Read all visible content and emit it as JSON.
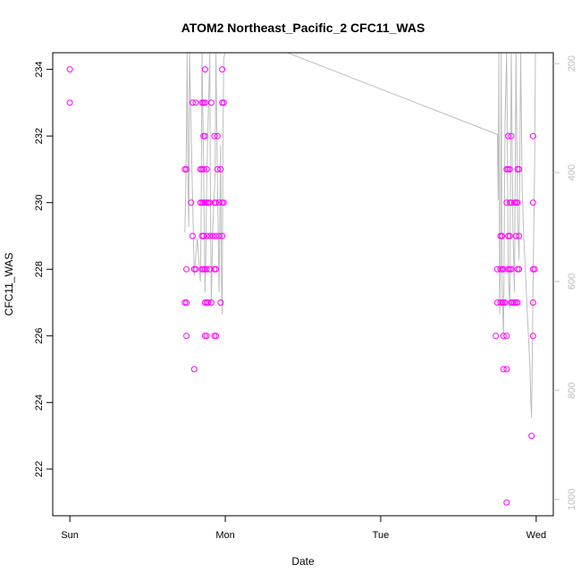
{
  "chart_data": {
    "type": "scatter",
    "title": "ATOM2 Northeast_Pacific_2 CFC11_WAS",
    "xlabel": "Date",
    "ylabel": "CFC11_WAS",
    "x_axis": {
      "ticks": [
        {
          "label": "Sun",
          "day": 0
        },
        {
          "label": "Mon",
          "day": 1
        },
        {
          "label": "Tue",
          "day": 2
        },
        {
          "label": "Wed",
          "day": 3
        }
      ],
      "xlim_days": [
        -0.11,
        3.11
      ]
    },
    "y_axis": {
      "ticks": [
        222,
        224,
        226,
        228,
        230,
        232,
        234
      ],
      "ylim": [
        220.6,
        234.5
      ]
    },
    "secondary_y_axis": {
      "label": "",
      "ticks": [
        200,
        400,
        600,
        800,
        1000
      ],
      "ylim": [
        1030,
        180
      ],
      "color": "#bdbdbd"
    },
    "series": [
      {
        "kind": "points",
        "color": "#ff00ff",
        "points": [
          [
            0.0,
            234
          ],
          [
            0.0,
            233
          ],
          [
            0.75,
            231
          ],
          [
            0.74,
            231
          ],
          [
            0.75,
            228
          ],
          [
            0.75,
            227
          ],
          [
            0.74,
            227
          ],
          [
            0.75,
            226
          ],
          [
            0.79,
            233
          ],
          [
            0.81,
            233
          ],
          [
            0.78,
            230
          ],
          [
            0.79,
            229
          ],
          [
            0.8,
            228
          ],
          [
            0.81,
            228
          ],
          [
            0.8,
            225
          ],
          [
            0.85,
            233
          ],
          [
            0.86,
            233
          ],
          [
            0.87,
            233
          ],
          [
            0.86,
            232
          ],
          [
            0.87,
            232
          ],
          [
            0.84,
            231
          ],
          [
            0.85,
            231
          ],
          [
            0.86,
            231
          ],
          [
            0.88,
            231
          ],
          [
            0.84,
            230
          ],
          [
            0.85,
            230
          ],
          [
            0.86,
            230
          ],
          [
            0.87,
            230
          ],
          [
            0.88,
            230
          ],
          [
            0.85,
            229
          ],
          [
            0.86,
            229
          ],
          [
            0.88,
            229
          ],
          [
            0.85,
            228
          ],
          [
            0.86,
            228
          ],
          [
            0.87,
            228
          ],
          [
            0.88,
            228
          ],
          [
            0.87,
            227
          ],
          [
            0.88,
            227
          ],
          [
            0.89,
            227
          ],
          [
            0.87,
            226
          ],
          [
            0.88,
            226
          ],
          [
            0.87,
            234
          ],
          [
            0.89,
            230
          ],
          [
            0.9,
            230
          ],
          [
            0.91,
            233
          ],
          [
            0.9,
            229
          ],
          [
            0.9,
            228
          ],
          [
            0.91,
            227
          ],
          [
            0.93,
            232
          ],
          [
            0.95,
            232
          ],
          [
            0.93,
            230
          ],
          [
            0.94,
            230
          ],
          [
            0.96,
            230
          ],
          [
            0.92,
            229
          ],
          [
            0.94,
            229
          ],
          [
            0.96,
            229
          ],
          [
            0.93,
            228
          ],
          [
            0.94,
            228
          ],
          [
            0.93,
            226
          ],
          [
            0.94,
            226
          ],
          [
            0.95,
            231
          ],
          [
            0.97,
            231
          ],
          [
            0.98,
            234
          ],
          [
            0.98,
            233
          ],
          [
            0.99,
            233
          ],
          [
            0.98,
            230
          ],
          [
            0.99,
            230
          ],
          [
            0.98,
            229
          ],
          [
            0.97,
            227
          ],
          [
            2.75,
            228
          ],
          [
            2.75,
            227
          ],
          [
            2.74,
            226
          ],
          [
            2.77,
            229
          ],
          [
            2.78,
            229
          ],
          [
            2.77,
            228
          ],
          [
            2.78,
            228
          ],
          [
            2.79,
            228
          ],
          [
            2.77,
            227
          ],
          [
            2.78,
            227
          ],
          [
            2.79,
            227
          ],
          [
            2.8,
            227
          ],
          [
            2.79,
            226
          ],
          [
            2.81,
            226
          ],
          [
            2.79,
            225
          ],
          [
            2.81,
            225
          ],
          [
            2.81,
            221
          ],
          [
            2.82,
            232
          ],
          [
            2.84,
            232
          ],
          [
            2.81,
            231
          ],
          [
            2.82,
            231
          ],
          [
            2.83,
            231
          ],
          [
            2.81,
            230
          ],
          [
            2.83,
            230
          ],
          [
            2.84,
            230
          ],
          [
            2.82,
            229
          ],
          [
            2.83,
            229
          ],
          [
            2.82,
            228
          ],
          [
            2.83,
            228
          ],
          [
            2.84,
            228
          ],
          [
            2.84,
            227
          ],
          [
            2.85,
            227
          ],
          [
            2.86,
            227
          ],
          [
            2.86,
            230
          ],
          [
            2.87,
            230
          ],
          [
            2.88,
            230
          ],
          [
            2.88,
            231
          ],
          [
            2.89,
            231
          ],
          [
            2.87,
            229
          ],
          [
            2.89,
            229
          ],
          [
            2.88,
            228
          ],
          [
            2.89,
            228
          ],
          [
            2.87,
            227
          ],
          [
            2.88,
            227
          ],
          [
            2.97,
            223
          ],
          [
            2.98,
            232
          ],
          [
            2.98,
            230
          ],
          [
            2.98,
            228
          ],
          [
            2.99,
            228
          ],
          [
            2.98,
            227
          ],
          [
            2.98,
            226
          ]
        ]
      },
      {
        "kind": "line",
        "color": "#bdbdbd",
        "axis": "secondary",
        "points": [
          [
            0.74,
            510
          ],
          [
            0.745,
            440
          ],
          [
            0.75,
            330
          ],
          [
            0.755,
            150
          ],
          [
            0.76,
            420
          ],
          [
            0.765,
            500
          ],
          [
            0.77,
            170
          ],
          [
            0.8,
            590
          ],
          [
            0.82,
            520
          ],
          [
            0.84,
            600
          ],
          [
            0.845,
            470
          ],
          [
            0.85,
            150
          ],
          [
            0.86,
            380
          ],
          [
            0.87,
            620
          ],
          [
            0.875,
            550
          ],
          [
            0.88,
            420
          ],
          [
            0.9,
            150
          ],
          [
            0.905,
            470
          ],
          [
            0.91,
            640
          ],
          [
            0.92,
            500
          ],
          [
            0.935,
            400
          ],
          [
            0.94,
            150
          ],
          [
            0.95,
            420
          ],
          [
            0.96,
            620
          ],
          [
            0.97,
            350
          ],
          [
            0.975,
            600
          ],
          [
            0.98,
            660
          ],
          [
            0.985,
            350
          ],
          [
            0.99,
            190
          ],
          [
            1.0,
            150
          ],
          [
            1.4,
            180
          ],
          [
            2.75,
            330
          ],
          [
            2.755,
            450
          ],
          [
            2.76,
            150
          ],
          [
            2.765,
            660
          ],
          [
            2.77,
            550
          ],
          [
            2.775,
            150
          ],
          [
            2.78,
            600
          ],
          [
            2.79,
            700
          ],
          [
            2.8,
            300
          ],
          [
            2.81,
            150
          ],
          [
            2.82,
            580
          ],
          [
            2.83,
            650
          ],
          [
            2.84,
            150
          ],
          [
            2.85,
            500
          ],
          [
            2.86,
            620
          ],
          [
            2.87,
            150
          ],
          [
            2.88,
            480
          ],
          [
            2.89,
            560
          ],
          [
            2.9,
            150
          ],
          [
            2.91,
            430
          ],
          [
            2.92,
            520
          ],
          [
            2.96,
            760
          ],
          [
            2.965,
            820
          ],
          [
            2.97,
            850
          ],
          [
            2.98,
            600
          ],
          [
            2.99,
            390
          ],
          [
            2.995,
            180
          ]
        ]
      }
    ]
  }
}
